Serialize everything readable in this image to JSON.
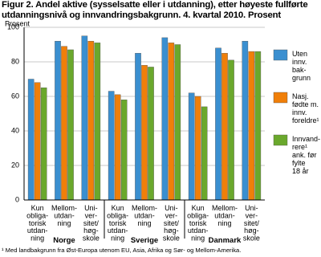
{
  "chart_data": {
    "type": "bar",
    "title": "Figur 2. Andel aktive (sysselsatte eller i utdanning), etter høyeste fullførte utdanningsnivå og innvandringsbakgrunn. 4. kvartal 2010. Prosent",
    "y_label": "Prosent",
    "groups": [
      "Norge",
      "Sverige",
      "Danmark"
    ],
    "categories": [
      [
        "Kun",
        "obliga-",
        "torisk",
        "utdan-",
        "ning"
      ],
      [
        "Mellom-",
        "utdan-",
        "ning"
      ],
      [
        "Uni-",
        "ver-",
        "sitet/",
        "høg-",
        "skole"
      ],
      [
        "Kun",
        "obliga-",
        "torisk",
        "utdan-",
        "ning"
      ],
      [
        "Mellom-",
        "utdan-",
        "ning"
      ],
      [
        "Uni-",
        "ver-",
        "sitet/",
        "høg-",
        "skole"
      ],
      [
        "Kun",
        "obliga-",
        "torisk",
        "utdan-",
        "ning"
      ],
      [
        "Mellom-",
        "utdan-",
        "ning"
      ],
      [
        "Uni-",
        "ver-",
        "sitet/",
        "høg-",
        "skole"
      ]
    ],
    "series": [
      {
        "name": [
          "Uten",
          "innv.",
          "bak-",
          "grunn"
        ],
        "color": "#3a8fd0",
        "values": [
          70,
          92,
          95,
          63,
          85,
          94,
          62,
          88,
          92
        ]
      },
      {
        "name": [
          "Nasj.",
          "fødte m.",
          "innv.",
          "foreldre¹"
        ],
        "color": "#f07f09",
        "values": [
          68,
          89,
          92,
          61,
          78,
          91,
          60,
          85,
          86
        ]
      },
      {
        "name": [
          "Innvand-",
          "rere¹",
          "ank. før",
          "fylte",
          "18 år"
        ],
        "color": "#6aa82c",
        "values": [
          65,
          87,
          91,
          58,
          77,
          90,
          54,
          81,
          86
        ]
      }
    ],
    "ylim": [
      0,
      100
    ],
    "yticks": [
      0,
      20,
      40,
      60,
      80,
      100
    ],
    "grid": true,
    "legend": "right",
    "footnote": "¹ Med landbakgrunn fra Øst-Europa utenom EU, Asia, Afrika og Sør- og Mellom-Amerika."
  }
}
